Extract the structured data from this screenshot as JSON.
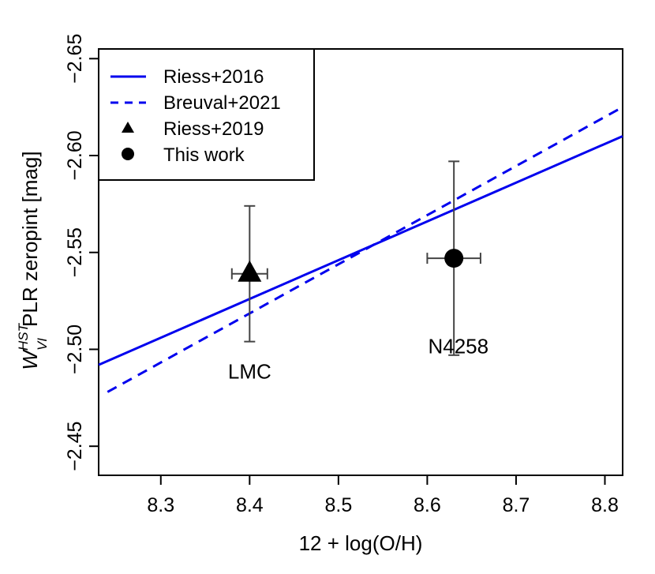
{
  "chart_data": {
    "type": "scatter",
    "xlabel": "12 + log(O/H)",
    "ylabel": {
      "symbol": "W",
      "superscript": "HST",
      "subscript": "VI",
      "text": "PLR zeropint [mag]"
    },
    "xlim": [
      8.23,
      8.82
    ],
    "ylim": [
      -2.435,
      -2.655
    ],
    "y_reversed": true,
    "x_ticks": [
      8.3,
      8.4,
      8.5,
      8.6,
      8.7,
      8.8
    ],
    "x_tick_labels": [
      "8.3",
      "8.4",
      "8.5",
      "8.6",
      "8.7",
      "8.8"
    ],
    "y_ticks": [
      -2.45,
      -2.5,
      -2.55,
      -2.6,
      -2.65
    ],
    "y_tick_labels": [
      "−2.45",
      "−2.50",
      "−2.55",
      "−2.60",
      "−2.65"
    ],
    "color_lines": "#0000ee",
    "color_points": "#000000",
    "series": [
      {
        "name": "Riess+2016",
        "kind": "line",
        "style": "solid",
        "x": [
          8.23,
          8.82
        ],
        "y": [
          -2.492,
          -2.61
        ]
      },
      {
        "name": "Breuval+2021",
        "kind": "line",
        "style": "dashed",
        "x": [
          8.24,
          8.82
        ],
        "y": [
          -2.478,
          -2.625
        ]
      },
      {
        "name": "Riess+2019",
        "kind": "point",
        "marker": "triangle",
        "x": 8.4,
        "y": -2.539,
        "xerr": 0.02,
        "yerr": 0.035
      },
      {
        "name": "This work",
        "kind": "point",
        "marker": "circle",
        "x": 8.63,
        "y": -2.547,
        "xerr": 0.03,
        "yerr": 0.05
      }
    ],
    "annotations": [
      {
        "text": "LMC",
        "x": 8.4,
        "y": -2.485
      },
      {
        "text": "N4258",
        "x": 8.635,
        "y": -2.498
      }
    ],
    "legend_position": "top-left",
    "grid": false
  }
}
